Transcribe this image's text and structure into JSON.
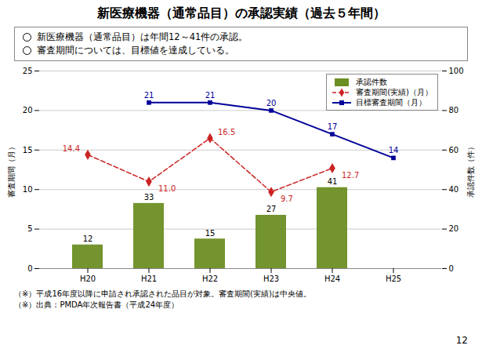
{
  "chart_data": {
    "type": "bar",
    "title": "新医療機器（通常品目）の承認実績（過去５年間）",
    "annotations": [
      "新医療機器（通常品目）は年間12～41件の承認。",
      "審査期間については、目標値を達成している。",
      "（※）平成16年度以降に申請され承認された品目が対象。審査期間(実績)は中央値。",
      "（※）出典：PMDA年次報告書（平成24年度）",
      "12"
    ],
    "categories": [
      "H20",
      "H21",
      "H22",
      "H23",
      "H24",
      "H25"
    ],
    "ylabel": "審査期間（月）",
    "y2label": "承認件数（件）",
    "ylim": [
      0,
      25
    ],
    "yticks": [
      0,
      5,
      10,
      15,
      20,
      25
    ],
    "y2lim": [
      0,
      100
    ],
    "y2ticks": [
      0,
      20,
      40,
      60,
      80,
      100
    ],
    "grid": true,
    "legend": "upper right",
    "data_labels": true,
    "series": [
      {
        "name": "承認件数",
        "axis": "y2",
        "color": "#6b8e23",
        "values": [
          12,
          33,
          15,
          27,
          41,
          null
        ]
      },
      {
        "name": "審査期間(実績)（月）",
        "type": "line",
        "color": "#cc2222",
        "line_style": "dashed",
        "marker": "diamond",
        "values": [
          14.4,
          11.0,
          16.5,
          9.7,
          12.7,
          null
        ],
        "value_labels": [
          "14.4",
          "11.0",
          "16.5",
          "9.7",
          "12.7",
          null
        ]
      },
      {
        "name": "目標審査期間（月）",
        "type": "line",
        "color": "#000099",
        "line_style": "solid",
        "marker": "square",
        "values": [
          null,
          21,
          21,
          20,
          17,
          14
        ]
      }
    ]
  }
}
